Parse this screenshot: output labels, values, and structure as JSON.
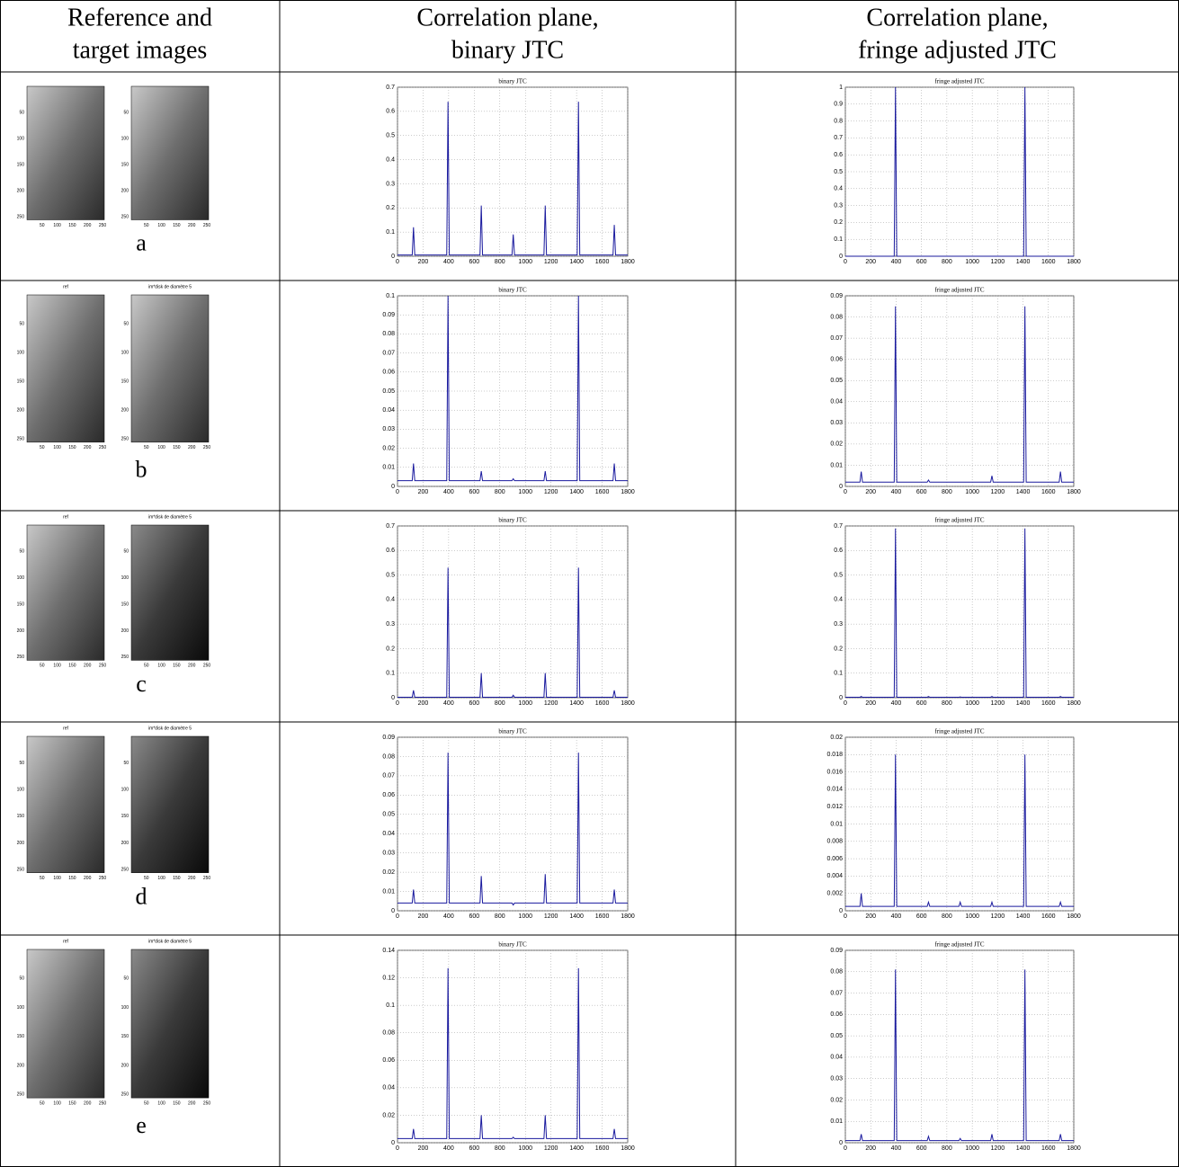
{
  "table": {
    "header": [
      [
        "Reference and",
        "target images"
      ],
      [
        "Correlation plane,",
        "binary JTC"
      ],
      [
        "Correlation plane,",
        "fringe adjusted JTC"
      ]
    ],
    "image_axes": {
      "lim": [
        0,
        256
      ],
      "xticks": [
        50,
        100,
        150,
        200,
        250
      ],
      "yticks": [
        50,
        100,
        150,
        200,
        250
      ]
    },
    "rows": [
      {
        "label": "a",
        "images": [
          {},
          {}
        ],
        "charts": [
          {
            "type": "line",
            "title": "binary JTC",
            "color": "#1a1a9e",
            "xlim": [
              0,
              1800
            ],
            "xticks": [
              0,
              200,
              400,
              600,
              800,
              1000,
              1200,
              1400,
              1600,
              1800
            ],
            "ylim": [
              0,
              0.7
            ],
            "yticks": [
              0,
              0.1,
              0.2,
              0.3,
              0.4,
              0.5,
              0.6,
              0.7
            ],
            "grid": true,
            "x": [
              0,
              115,
              125,
              135,
              385,
              395,
              405,
              645,
              655,
              665,
              895,
              905,
              915,
              1145,
              1155,
              1165,
              1405,
              1415,
              1425,
              1685,
              1695,
              1705,
              1800
            ],
            "values": [
              0.005,
              0.005,
              0.12,
              0.005,
              0.005,
              0.64,
              0.005,
              0.005,
              0.21,
              0.005,
              0.005,
              0.09,
              0.005,
              0.005,
              0.21,
              0.005,
              0.005,
              0.64,
              0.005,
              0.005,
              0.13,
              0.005,
              0.005
            ]
          },
          {
            "type": "line",
            "title": "fringe adjusted JTC",
            "color": "#1a1a9e",
            "xlim": [
              0,
              1800
            ],
            "xticks": [
              0,
              200,
              400,
              600,
              800,
              1000,
              1200,
              1400,
              1600,
              1800
            ],
            "ylim": [
              0,
              1
            ],
            "yticks": [
              0,
              0.1,
              0.2,
              0.3,
              0.4,
              0.5,
              0.6,
              0.7,
              0.8,
              0.9,
              1
            ],
            "grid": true,
            "x": [
              0,
              115,
              125,
              135,
              385,
              395,
              405,
              645,
              655,
              665,
              895,
              905,
              915,
              1145,
              1155,
              1165,
              1405,
              1415,
              1425,
              1685,
              1695,
              1705,
              1800
            ],
            "values": [
              0,
              0,
              0,
              0,
              0,
              1,
              0,
              0,
              0,
              0,
              0,
              0,
              0,
              0,
              0,
              0,
              0,
              1,
              0,
              0,
              0,
              0,
              0
            ]
          }
        ]
      },
      {
        "label": "b",
        "images": [
          {
            "title": "ref"
          },
          {
            "title": "im*disk de diamètre 5"
          }
        ],
        "charts": [
          {
            "type": "line",
            "title": "binary JTC",
            "color": "#1a1a9e",
            "xlim": [
              0,
              1800
            ],
            "xticks": [
              0,
              200,
              400,
              600,
              800,
              1000,
              1200,
              1400,
              1600,
              1800
            ],
            "ylim": [
              0,
              0.1
            ],
            "yticks": [
              0,
              0.01,
              0.02,
              0.03,
              0.04,
              0.05,
              0.06,
              0.07,
              0.08,
              0.09,
              0.1
            ],
            "grid": true,
            "x": [
              0,
              115,
              125,
              135,
              385,
              395,
              405,
              645,
              655,
              665,
              895,
              905,
              915,
              1145,
              1155,
              1165,
              1405,
              1415,
              1425,
              1685,
              1695,
              1705,
              1800
            ],
            "values": [
              0.003,
              0.003,
              0.012,
              0.003,
              0.003,
              0.1,
              0.003,
              0.003,
              0.008,
              0.003,
              0.003,
              0.004,
              0.003,
              0.003,
              0.008,
              0.003,
              0.003,
              0.1,
              0.003,
              0.003,
              0.012,
              0.003,
              0.003
            ]
          },
          {
            "type": "line",
            "title": "fringe adjusted JTC",
            "color": "#1a1a9e",
            "xlim": [
              0,
              1800
            ],
            "xticks": [
              0,
              200,
              400,
              600,
              800,
              1000,
              1200,
              1400,
              1600,
              1800
            ],
            "ylim": [
              0,
              0.09
            ],
            "yticks": [
              0,
              0.01,
              0.02,
              0.03,
              0.04,
              0.05,
              0.06,
              0.07,
              0.08,
              0.09
            ],
            "grid": true,
            "x": [
              0,
              115,
              125,
              135,
              385,
              395,
              405,
              645,
              655,
              665,
              895,
              905,
              915,
              1145,
              1155,
              1165,
              1405,
              1415,
              1425,
              1685,
              1695,
              1705,
              1800
            ],
            "values": [
              0.002,
              0.002,
              0.007,
              0.002,
              0.002,
              0.085,
              0.002,
              0.002,
              0.003,
              0.002,
              0.002,
              0.002,
              0.002,
              0.002,
              0.005,
              0.002,
              0.002,
              0.085,
              0.002,
              0.002,
              0.007,
              0.002,
              0.002
            ]
          }
        ]
      },
      {
        "label": "c",
        "images": [
          {
            "title": "ref"
          },
          {
            "title": "im*disk de diamètre 5"
          }
        ],
        "charts": [
          {
            "type": "line",
            "title": "binary JTC",
            "color": "#1a1a9e",
            "xlim": [
              0,
              1800
            ],
            "xticks": [
              0,
              200,
              400,
              600,
              800,
              1000,
              1200,
              1400,
              1600,
              1800
            ],
            "ylim": [
              0,
              0.7
            ],
            "yticks": [
              0,
              0.1,
              0.2,
              0.3,
              0.4,
              0.5,
              0.6,
              0.7
            ],
            "grid": true,
            "x": [
              0,
              115,
              125,
              135,
              385,
              395,
              405,
              645,
              655,
              665,
              895,
              905,
              915,
              1145,
              1155,
              1165,
              1405,
              1415,
              1425,
              1685,
              1695,
              1705,
              1800
            ],
            "values": [
              0.002,
              0.002,
              0.03,
              0.002,
              0.002,
              0.53,
              0.002,
              0.002,
              0.1,
              0.002,
              0.002,
              0.01,
              0.002,
              0.002,
              0.1,
              0.002,
              0.002,
              0.53,
              0.002,
              0.002,
              0.03,
              0.002,
              0.002
            ]
          },
          {
            "type": "line",
            "title": "fringe adjusted JTC",
            "color": "#1a1a9e",
            "xlim": [
              0,
              1800
            ],
            "xticks": [
              0,
              200,
              400,
              600,
              800,
              1000,
              1200,
              1400,
              1600,
              1800
            ],
            "ylim": [
              0,
              0.7
            ],
            "yticks": [
              0,
              0.1,
              0.2,
              0.3,
              0.4,
              0.5,
              0.6,
              0.7
            ],
            "grid": true,
            "x": [
              0,
              115,
              125,
              135,
              385,
              395,
              405,
              645,
              655,
              665,
              895,
              905,
              915,
              1145,
              1155,
              1165,
              1405,
              1415,
              1425,
              1685,
              1695,
              1705,
              1800
            ],
            "values": [
              0.002,
              0.002,
              0.005,
              0.002,
              0.002,
              0.69,
              0.002,
              0.002,
              0.005,
              0.002,
              0.002,
              0.003,
              0.002,
              0.002,
              0.005,
              0.002,
              0.002,
              0.69,
              0.002,
              0.002,
              0.005,
              0.002,
              0.002
            ]
          }
        ]
      },
      {
        "label": "d",
        "images": [
          {
            "title": "ref"
          },
          {
            "title": "im*disk de diamètre 5"
          }
        ],
        "charts": [
          {
            "type": "line",
            "title": "binary JTC",
            "color": "#1a1a9e",
            "xlim": [
              0,
              1800
            ],
            "xticks": [
              0,
              200,
              400,
              600,
              800,
              1000,
              1200,
              1400,
              1600,
              1800
            ],
            "ylim": [
              0,
              0.09
            ],
            "yticks": [
              0,
              0.01,
              0.02,
              0.03,
              0.04,
              0.05,
              0.06,
              0.07,
              0.08,
              0.09
            ],
            "grid": true,
            "x": [
              0,
              115,
              125,
              135,
              385,
              395,
              405,
              645,
              655,
              665,
              895,
              905,
              915,
              1145,
              1155,
              1165,
              1405,
              1415,
              1425,
              1685,
              1695,
              1705,
              1800
            ],
            "values": [
              0.004,
              0.004,
              0.011,
              0.004,
              0.004,
              0.082,
              0.004,
              0.004,
              0.018,
              0.004,
              0.004,
              0.003,
              0.004,
              0.004,
              0.019,
              0.004,
              0.004,
              0.082,
              0.004,
              0.004,
              0.011,
              0.004,
              0.004
            ]
          },
          {
            "type": "line",
            "title": "fringe adjusted JTC",
            "color": "#1a1a9e",
            "xlim": [
              0,
              1800
            ],
            "xticks": [
              0,
              200,
              400,
              600,
              800,
              1000,
              1200,
              1400,
              1600,
              1800
            ],
            "ylim": [
              0,
              0.02
            ],
            "yticks": [
              0,
              0.002,
              0.004,
              0.006,
              0.008,
              0.01,
              0.012,
              0.014,
              0.016,
              0.018,
              0.02
            ],
            "grid": true,
            "x": [
              0,
              115,
              125,
              135,
              385,
              395,
              405,
              645,
              655,
              665,
              895,
              905,
              915,
              1145,
              1155,
              1165,
              1405,
              1415,
              1425,
              1685,
              1695,
              1705,
              1800
            ],
            "values": [
              0.0005,
              0.0005,
              0.002,
              0.0005,
              0.0005,
              0.018,
              0.0005,
              0.0005,
              0.001,
              0.0005,
              0.0005,
              0.001,
              0.0005,
              0.0005,
              0.001,
              0.0005,
              0.0005,
              0.018,
              0.0005,
              0.0005,
              0.001,
              0.0005,
              0.0005
            ]
          }
        ]
      },
      {
        "label": "e",
        "images": [
          {
            "title": "ref"
          },
          {
            "title": "im*disk de diamètre 5"
          }
        ],
        "charts": [
          {
            "type": "line",
            "title": "binary JTC",
            "color": "#1a1a9e",
            "xlim": [
              0,
              1800
            ],
            "xticks": [
              0,
              200,
              400,
              600,
              800,
              1000,
              1200,
              1400,
              1600,
              1800
            ],
            "ylim": [
              0,
              0.14
            ],
            "yticks": [
              0,
              0.02,
              0.04,
              0.06,
              0.08,
              0.1,
              0.12,
              0.14
            ],
            "grid": true,
            "x": [
              0,
              115,
              125,
              135,
              385,
              395,
              405,
              645,
              655,
              665,
              895,
              905,
              915,
              1145,
              1155,
              1165,
              1405,
              1415,
              1425,
              1685,
              1695,
              1705,
              1800
            ],
            "values": [
              0.003,
              0.003,
              0.01,
              0.003,
              0.003,
              0.127,
              0.003,
              0.003,
              0.02,
              0.003,
              0.003,
              0.004,
              0.003,
              0.003,
              0.02,
              0.003,
              0.003,
              0.127,
              0.003,
              0.003,
              0.01,
              0.003,
              0.003
            ]
          },
          {
            "type": "line",
            "title": "fringe adjusted JTC",
            "color": "#1a1a9e",
            "xlim": [
              0,
              1800
            ],
            "xticks": [
              0,
              200,
              400,
              600,
              800,
              1000,
              1200,
              1400,
              1600,
              1800
            ],
            "ylim": [
              0,
              0.09
            ],
            "yticks": [
              0,
              0.01,
              0.02,
              0.03,
              0.04,
              0.05,
              0.06,
              0.07,
              0.08,
              0.09
            ],
            "grid": true,
            "x": [
              0,
              115,
              125,
              135,
              385,
              395,
              405,
              645,
              655,
              665,
              895,
              905,
              915,
              1145,
              1155,
              1165,
              1405,
              1415,
              1425,
              1685,
              1695,
              1705,
              1800
            ],
            "values": [
              0.001,
              0.001,
              0.004,
              0.001,
              0.001,
              0.081,
              0.001,
              0.001,
              0.003,
              0.001,
              0.001,
              0.002,
              0.001,
              0.001,
              0.004,
              0.001,
              0.001,
              0.081,
              0.001,
              0.001,
              0.004,
              0.001,
              0.001
            ]
          }
        ]
      }
    ]
  }
}
